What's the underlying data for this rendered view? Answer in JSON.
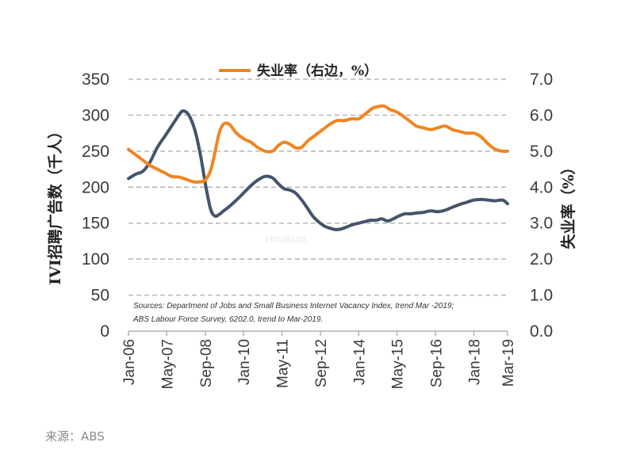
{
  "chart_data": {
    "type": "line",
    "legend_label": "失业率（右边，%）",
    "left_axis_label": "IVI招聘广告数（千人）",
    "right_axis_label": "失业率（%）",
    "left_ylim": [
      0,
      350
    ],
    "right_ylim": [
      0.0,
      7.0
    ],
    "left_ticks": [
      "350",
      "300",
      "250",
      "200",
      "150",
      "100",
      "50",
      "0"
    ],
    "right_ticks": [
      "7.0",
      "6.0",
      "5.0",
      "4.0",
      "3.0",
      "2.0",
      "1.0",
      "0.0"
    ],
    "x_tick_labels": [
      "Jan-06",
      "May-07",
      "Sep-08",
      "Jan-10",
      "May-11",
      "Sep-12",
      "Jan-14",
      "May-15",
      "Sep-16",
      "Jan-18",
      "Mar-19"
    ],
    "x_range": [
      2006.0,
      2019.17
    ],
    "x_ticks": [
      2006.0,
      2007.33,
      2008.67,
      2010.0,
      2011.33,
      2012.67,
      2014.0,
      2015.33,
      2016.67,
      2018.0,
      2019.17
    ],
    "grid": true,
    "series": [
      {
        "name": "IVI招聘广告数（千人）",
        "axis": "left",
        "color": "#44546a",
        "x": [
          2006.0,
          2006.25,
          2006.5,
          2006.75,
          2007.0,
          2007.25,
          2007.5,
          2007.75,
          2007.9,
          2008.1,
          2008.3,
          2008.5,
          2008.67,
          2008.85,
          2009.0,
          2009.15,
          2009.3,
          2009.5,
          2009.75,
          2010.0,
          2010.25,
          2010.5,
          2010.75,
          2011.0,
          2011.2,
          2011.4,
          2011.6,
          2011.8,
          2012.0,
          2012.2,
          2012.4,
          2012.6,
          2012.8,
          2013.0,
          2013.2,
          2013.4,
          2013.6,
          2013.8,
          2014.0,
          2014.2,
          2014.4,
          2014.6,
          2014.8,
          2015.0,
          2015.2,
          2015.4,
          2015.6,
          2015.8,
          2016.0,
          2016.25,
          2016.5,
          2016.75,
          2017.0,
          2017.25,
          2017.5,
          2017.75,
          2018.0,
          2018.25,
          2018.5,
          2018.75,
          2019.0,
          2019.17
        ],
        "y": [
          212,
          218,
          222,
          235,
          255,
          270,
          285,
          300,
          306,
          300,
          280,
          245,
          205,
          170,
          160,
          162,
          167,
          173,
          182,
          192,
          202,
          210,
          215,
          213,
          205,
          198,
          196,
          192,
          183,
          172,
          160,
          152,
          146,
          143,
          141,
          142,
          145,
          148,
          150,
          152,
          154,
          154,
          156,
          153,
          156,
          160,
          163,
          163,
          164,
          165,
          167,
          166,
          168,
          172,
          176,
          179,
          182,
          183,
          182,
          181,
          182,
          177
        ]
      },
      {
        "name": "失业率（右边，%）",
        "axis": "right",
        "color": "#f08522",
        "x": [
          2006.0,
          2006.25,
          2006.5,
          2006.75,
          2007.0,
          2007.25,
          2007.5,
          2007.75,
          2008.0,
          2008.25,
          2008.5,
          2008.67,
          2008.85,
          2009.0,
          2009.15,
          2009.3,
          2009.5,
          2009.75,
          2010.0,
          2010.25,
          2010.5,
          2010.75,
          2011.0,
          2011.2,
          2011.4,
          2011.6,
          2011.8,
          2012.0,
          2012.25,
          2012.5,
          2012.75,
          2013.0,
          2013.25,
          2013.5,
          2013.75,
          2014.0,
          2014.25,
          2014.5,
          2014.75,
          2014.9,
          2015.1,
          2015.3,
          2015.5,
          2015.75,
          2016.0,
          2016.25,
          2016.5,
          2016.75,
          2017.0,
          2017.25,
          2017.5,
          2017.75,
          2018.0,
          2018.25,
          2018.5,
          2018.75,
          2019.0,
          2019.17
        ],
        "y": [
          5.05,
          4.9,
          4.75,
          4.6,
          4.5,
          4.4,
          4.3,
          4.28,
          4.22,
          4.15,
          4.15,
          4.2,
          4.45,
          4.95,
          5.5,
          5.75,
          5.75,
          5.5,
          5.35,
          5.25,
          5.1,
          5.0,
          5.0,
          5.15,
          5.25,
          5.2,
          5.1,
          5.1,
          5.3,
          5.45,
          5.6,
          5.75,
          5.85,
          5.85,
          5.9,
          5.9,
          6.05,
          6.2,
          6.25,
          6.25,
          6.15,
          6.1,
          6.0,
          5.85,
          5.7,
          5.65,
          5.6,
          5.65,
          5.7,
          5.6,
          5.55,
          5.5,
          5.5,
          5.4,
          5.2,
          5.05,
          5.0,
          5.0
        ]
      }
    ],
    "source_note": [
      "Sources: Department of Jobs and Small Business Internet Vacancy Index, trend Mar -2019;",
      "ABS Labour Force Survey, 6202.0, trend to Mar-2019."
    ],
    "watermark": [
      "Hinabian"
    ]
  },
  "footer": "来源：ABS"
}
